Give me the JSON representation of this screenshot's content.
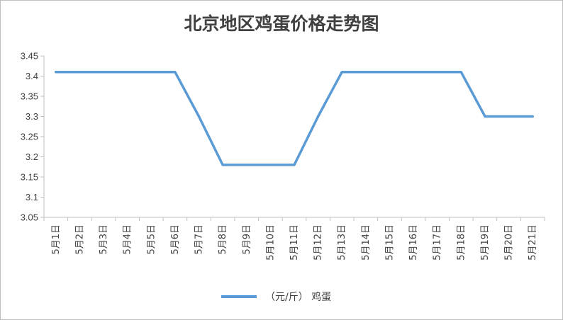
{
  "chart_data": {
    "type": "line",
    "title": "北京地区鸡蛋价格走势图",
    "categories": [
      "5月1日",
      "5月2日",
      "5月3日",
      "5月4日",
      "5月5日",
      "5月6日",
      "5月7日",
      "5月8日",
      "5月9日",
      "5月10日",
      "5月11日",
      "5月12日",
      "5月13日",
      "5月14日",
      "5月15日",
      "5月16日",
      "5月17日",
      "5月18日",
      "5月19日",
      "5月20日",
      "5月21日"
    ],
    "series": [
      {
        "name": "（元/斤） 鸡蛋",
        "values": [
          3.41,
          3.41,
          3.41,
          3.41,
          3.41,
          3.41,
          3.3,
          3.18,
          3.18,
          3.18,
          3.18,
          3.3,
          3.41,
          3.41,
          3.41,
          3.41,
          3.41,
          3.41,
          3.3,
          3.3,
          3.3
        ],
        "color": "#5b9bd5"
      }
    ],
    "yticks": [
      "3.05",
      "3.1",
      "3.15",
      "3.2",
      "3.25",
      "3.3",
      "3.35",
      "3.4",
      "3.45"
    ],
    "ylim": [
      3.05,
      3.45
    ],
    "grid": false,
    "legend_position": "bottom"
  }
}
